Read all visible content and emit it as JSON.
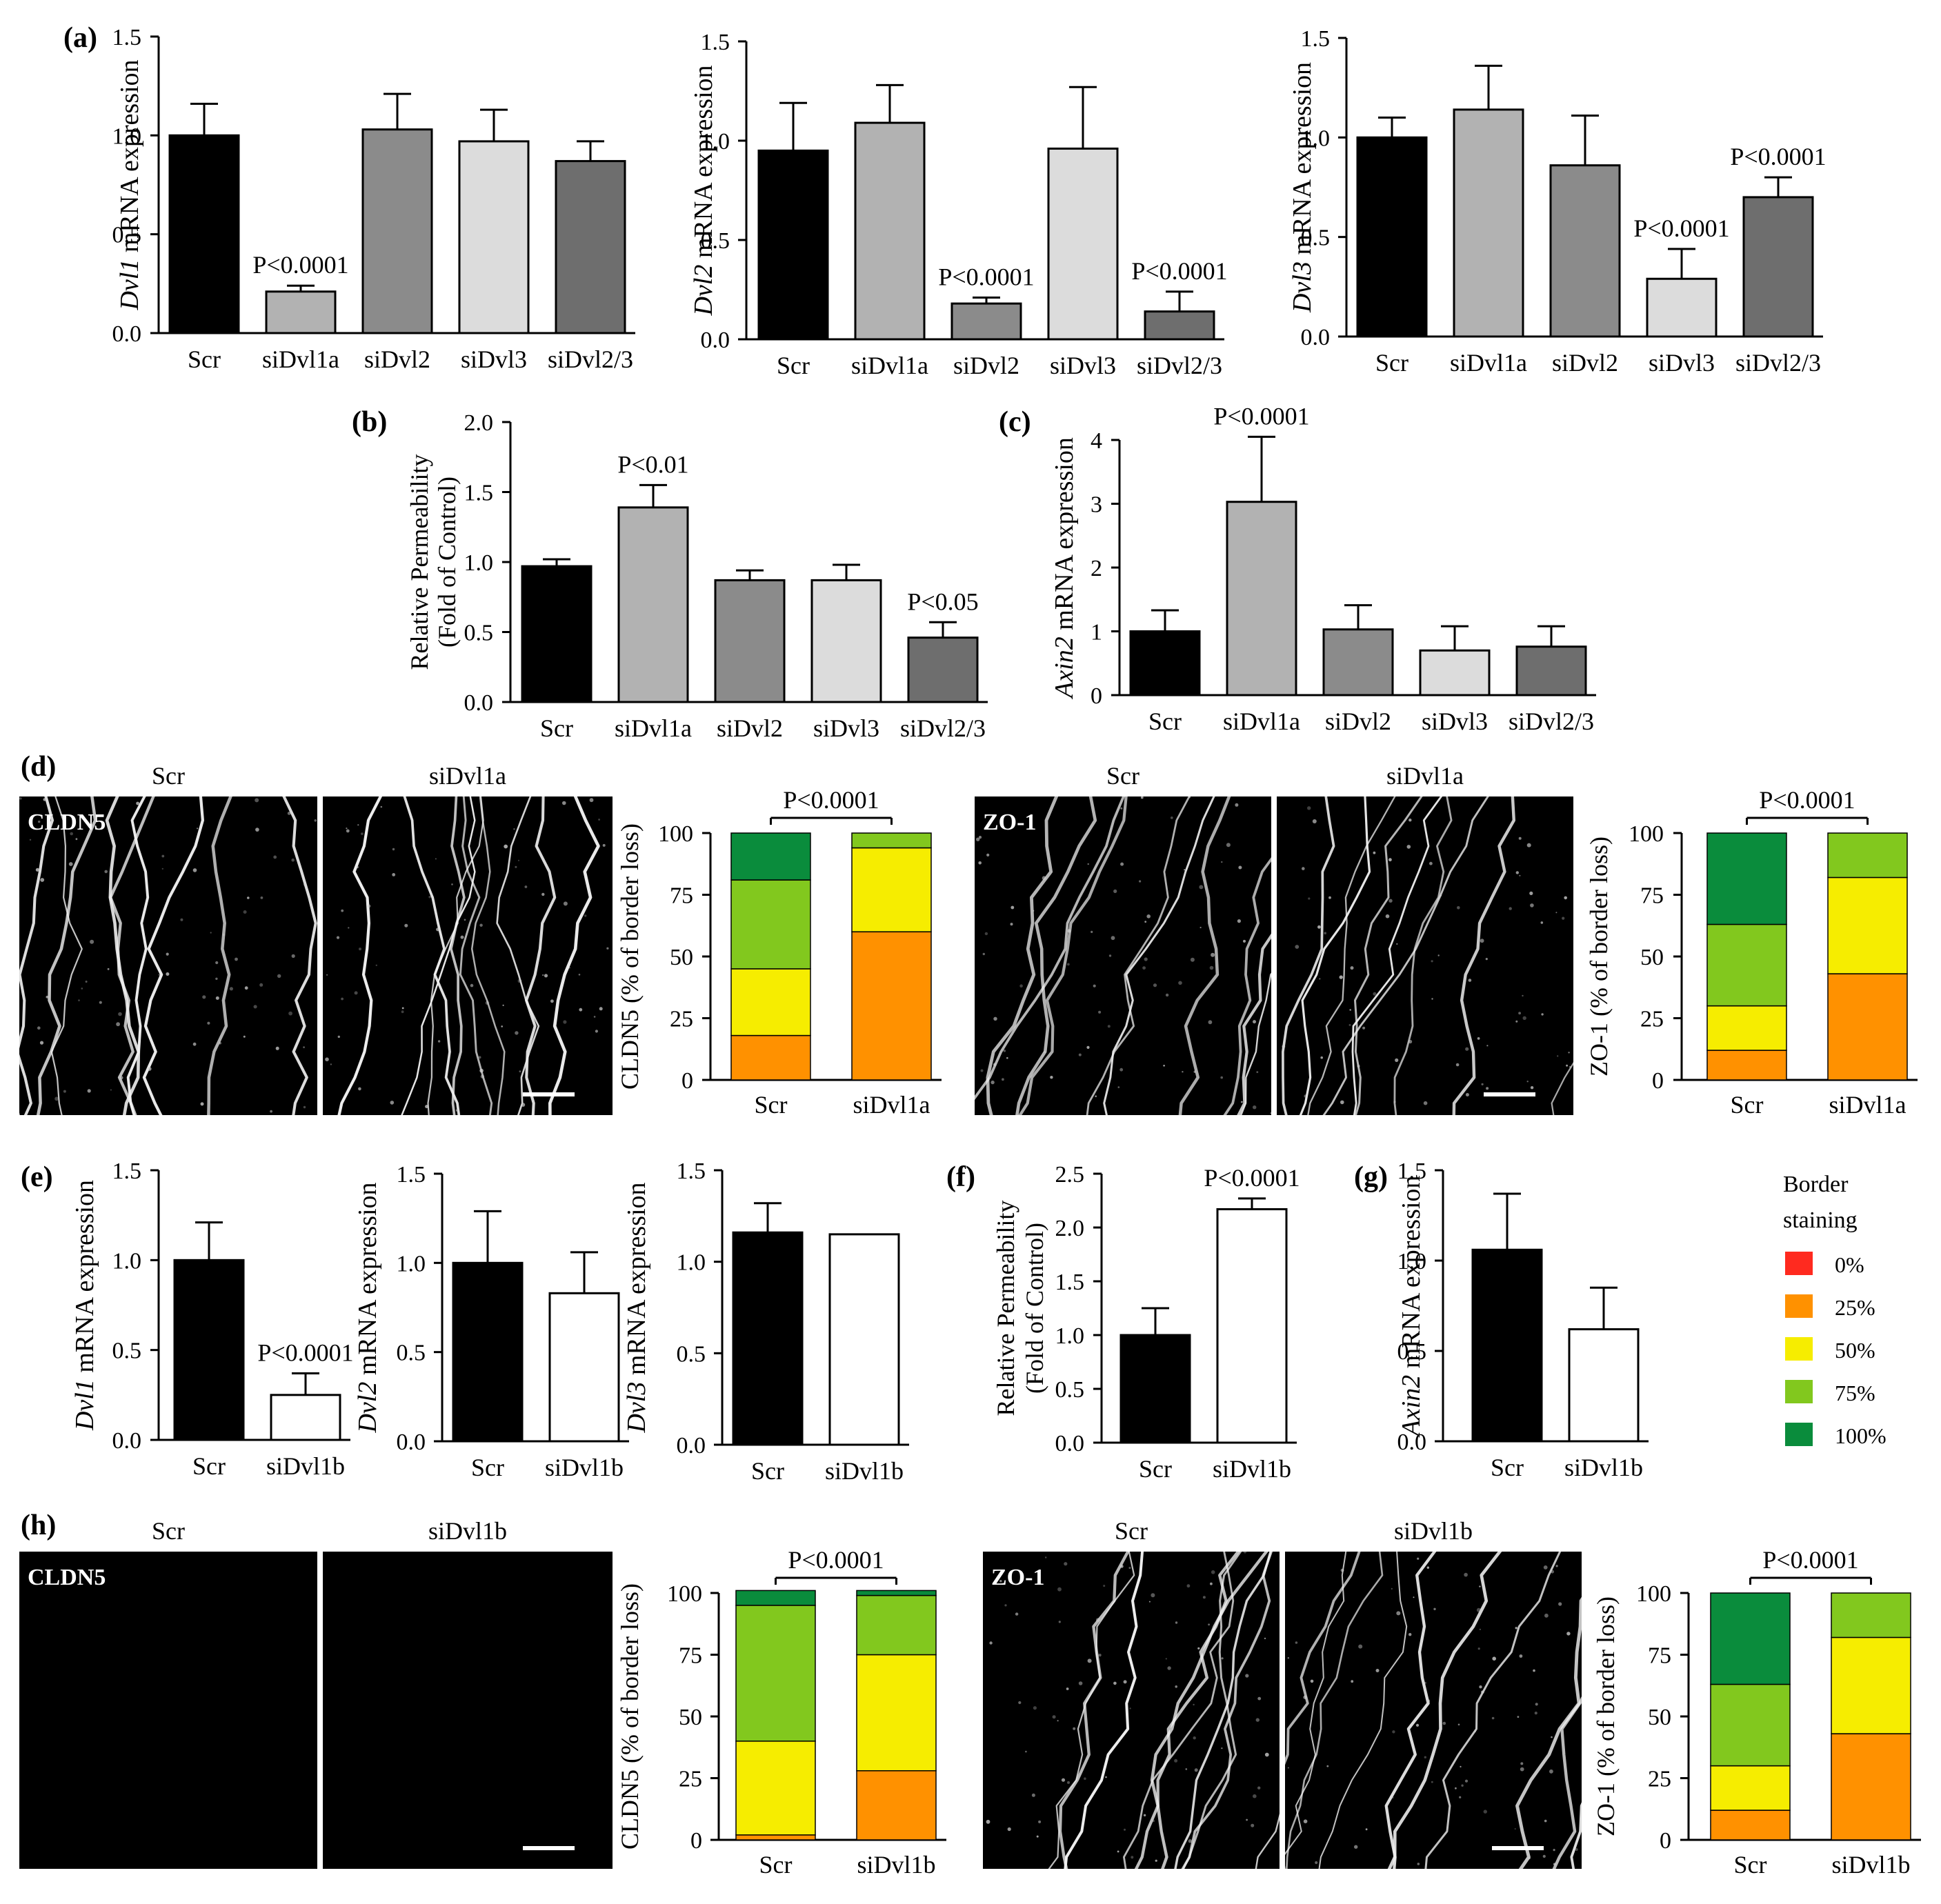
{
  "figure": {
    "panel_letters": {
      "a": "(a)",
      "b": "(b)",
      "c": "(c)",
      "d": "(d)",
      "e": "(e)",
      "f": "(f)",
      "g": "(g)",
      "h": "(h)"
    }
  },
  "legend": {
    "title_line1": "Border",
    "title_line2": "staining",
    "items": [
      {
        "label": "0%",
        "color": "#ff2a1f"
      },
      {
        "label": "25%",
        "color": "#ff9100"
      },
      {
        "label": "50%",
        "color": "#f6ed00"
      },
      {
        "label": "75%",
        "color": "#82c81e"
      },
      {
        "label": "100%",
        "color": "#0a8c3c"
      }
    ]
  },
  "colors": {
    "scr": "#000000",
    "siDvl1a": "#b2b2b2",
    "siDvl2": "#8b8b8b",
    "siDvl3": "#dcdcdc",
    "siDvl2_3": "#6e6e6e",
    "siDvl1b": "#ffffff"
  },
  "micrographs": {
    "d_cldn5": {
      "stain": "CLDN5",
      "left_title": "Scr",
      "right_title": "siDvl1a"
    },
    "d_zo1": {
      "stain": "ZO-1",
      "left_title": "Scr",
      "right_title": "siDvl1a"
    },
    "h_cldn5": {
      "stain": "CLDN5",
      "left_title": "Scr",
      "right_title": "siDvl1b"
    },
    "h_zo1": {
      "stain": "ZO-1",
      "left_title": "Scr",
      "right_title": "siDvl1b"
    }
  },
  "chart_data": [
    {
      "id": "a1",
      "panel": "(a)",
      "type": "bar",
      "ylabel_italic": "Dvl1",
      "ylabel_rest": " mRNA expression",
      "ylim": [
        0,
        1.5
      ],
      "yticks": [
        "0.0",
        "0.5",
        "1.0",
        "1.5"
      ],
      "categories": [
        "Scr",
        "siDvl1a",
        "siDvl2",
        "siDvl3",
        "siDvl2/3"
      ],
      "values": [
        1.0,
        0.21,
        1.03,
        0.97,
        0.87
      ],
      "errors": [
        0.16,
        0.03,
        0.18,
        0.16,
        0.1
      ],
      "annotations": [
        "",
        "P<0.0001",
        "",
        "",
        ""
      ]
    },
    {
      "id": "a2",
      "panel": "",
      "type": "bar",
      "ylabel_italic": "Dvl2",
      "ylabel_rest": " mRNA expression",
      "ylim": [
        0,
        1.5
      ],
      "yticks": [
        "0.0",
        "0.5",
        "1.0",
        "1.5"
      ],
      "categories": [
        "Scr",
        "siDvl1a",
        "siDvl2",
        "siDvl3",
        "siDvl2/3"
      ],
      "values": [
        0.95,
        1.09,
        0.18,
        0.96,
        0.14
      ],
      "errors": [
        0.24,
        0.19,
        0.03,
        0.31,
        0.1
      ],
      "annotations": [
        "",
        "",
        "P<0.0001",
        "",
        "P<0.0001"
      ]
    },
    {
      "id": "a3",
      "panel": "",
      "type": "bar",
      "ylabel_italic": "Dvl3",
      "ylabel_rest": " mRNA expression",
      "ylim": [
        0,
        1.5
      ],
      "yticks": [
        "0.0",
        "0.5",
        "1.0",
        "1.5"
      ],
      "categories": [
        "Scr",
        "siDvl1a",
        "siDvl2",
        "siDvl3",
        "siDvl2/3"
      ],
      "values": [
        1.0,
        1.14,
        0.86,
        0.29,
        0.7
      ],
      "errors": [
        0.1,
        0.22,
        0.25,
        0.15,
        0.1
      ],
      "annotations": [
        "",
        "",
        "",
        "P<0.0001",
        "P<0.0001"
      ]
    },
    {
      "id": "b",
      "panel": "(b)",
      "type": "bar",
      "ylabel_line1": "Relative Permeability",
      "ylabel_line2": "(Fold of Control)",
      "ylim": [
        0,
        2.0
      ],
      "yticks": [
        "0.0",
        "0.5",
        "1.0",
        "1.5",
        "2.0"
      ],
      "categories": [
        "Scr",
        "siDvl1a",
        "siDvl2",
        "siDvl3",
        "siDvl2/3"
      ],
      "values": [
        0.97,
        1.39,
        0.87,
        0.87,
        0.46
      ],
      "errors": [
        0.05,
        0.16,
        0.07,
        0.11,
        0.11
      ],
      "annotations": [
        "",
        "P<0.01",
        "",
        "",
        "P<0.05"
      ]
    },
    {
      "id": "c",
      "panel": "(c)",
      "type": "bar",
      "ylabel_italic": "Axin2",
      "ylabel_rest": " mRNA expression",
      "ylim": [
        0,
        4
      ],
      "yticks": [
        "0",
        "1",
        "2",
        "3",
        "4"
      ],
      "categories": [
        "Scr",
        "siDvl1a",
        "siDvl2",
        "siDvl3",
        "siDvl2/3"
      ],
      "values": [
        1.0,
        3.03,
        1.03,
        0.7,
        0.76
      ],
      "errors": [
        0.33,
        1.02,
        0.38,
        0.38,
        0.32
      ],
      "annotations": [
        "",
        "P<0.0001",
        "",
        "",
        ""
      ]
    },
    {
      "id": "d1",
      "panel": "",
      "type": "stacked-bar",
      "ylabel": "CLDN5 (% of border loss)",
      "ylim": [
        0,
        100
      ],
      "yticks": [
        "0",
        "25",
        "50",
        "75",
        "100"
      ],
      "categories": [
        "Scr",
        "siDvl1a"
      ],
      "series": [
        {
          "name": "25%",
          "values": [
            18,
            60
          ]
        },
        {
          "name": "50%",
          "values": [
            27,
            34
          ]
        },
        {
          "name": "75%",
          "values": [
            36,
            6
          ]
        },
        {
          "name": "100%",
          "values": [
            19,
            0
          ]
        }
      ],
      "significance": "P<0.0001"
    },
    {
      "id": "d2",
      "panel": "",
      "type": "stacked-bar",
      "ylabel": "ZO-1 (% of border loss)",
      "ylim": [
        0,
        100
      ],
      "yticks": [
        "0",
        "25",
        "50",
        "75",
        "100"
      ],
      "categories": [
        "Scr",
        "siDvl1a"
      ],
      "series": [
        {
          "name": "25%",
          "values": [
            12,
            43
          ]
        },
        {
          "name": "50%",
          "values": [
            18,
            39
          ]
        },
        {
          "name": "75%",
          "values": [
            33,
            18
          ]
        },
        {
          "name": "100%",
          "values": [
            37,
            0
          ]
        }
      ],
      "significance": "P<0.0001"
    },
    {
      "id": "e1",
      "panel": "(e)",
      "type": "bar",
      "ylabel_italic": "Dvl1",
      "ylabel_rest": " mRNA expression",
      "ylim": [
        0,
        1.5
      ],
      "yticks": [
        "0.0",
        "0.5",
        "1.0",
        "1.5"
      ],
      "categories": [
        "Scr",
        "siDvl1b"
      ],
      "values": [
        1.0,
        0.25
      ],
      "errors": [
        0.21,
        0.12
      ],
      "annotations": [
        "",
        "P<0.0001"
      ]
    },
    {
      "id": "e2",
      "panel": "",
      "type": "bar",
      "ylabel_italic": "Dvl2",
      "ylabel_rest": " mRNA expression",
      "ylim": [
        0,
        1.5
      ],
      "yticks": [
        "0.0",
        "0.5",
        "1.0",
        "1.5"
      ],
      "categories": [
        "Scr",
        "siDvl1b"
      ],
      "values": [
        1.0,
        0.83
      ],
      "errors": [
        0.29,
        0.23
      ],
      "annotations": [
        "",
        ""
      ]
    },
    {
      "id": "e3",
      "panel": "",
      "type": "bar",
      "ylabel_italic": "Dvl3",
      "ylabel_rest": " mRNA expression",
      "ylim": [
        0,
        1.5
      ],
      "yticks": [
        "0.0",
        "0.5",
        "1.0",
        "1.5"
      ],
      "categories": [
        "Scr",
        "siDvl1b"
      ],
      "values": [
        1.16,
        1.15
      ],
      "errors": [
        0.16,
        0.0
      ],
      "annotations": [
        "",
        ""
      ]
    },
    {
      "id": "f",
      "panel": "(f)",
      "type": "bar",
      "ylabel_line1": "Relative Permeability",
      "ylabel_line2": "(Fold of Control)",
      "ylim": [
        0,
        2.5
      ],
      "yticks": [
        "0.0",
        "0.5",
        "1.0",
        "1.5",
        "2.0",
        "2.5"
      ],
      "categories": [
        "Scr",
        "siDvl1b"
      ],
      "values": [
        1.0,
        2.17
      ],
      "errors": [
        0.25,
        0.1
      ],
      "annotations": [
        "",
        "P<0.0001"
      ]
    },
    {
      "id": "g",
      "panel": "(g)",
      "type": "bar",
      "ylabel_italic": "Axin2",
      "ylabel_rest": " mRNA expression",
      "ylim": [
        0,
        1.5
      ],
      "yticks": [
        "0.0",
        "0.5",
        "1.0",
        "1.5"
      ],
      "categories": [
        "Scr",
        "siDvl1b"
      ],
      "values": [
        1.06,
        0.62
      ],
      "errors": [
        0.31,
        0.23
      ],
      "annotations": [
        "",
        ""
      ]
    },
    {
      "id": "h1",
      "panel": "",
      "type": "stacked-bar",
      "ylabel": "CLDN5 (% of border loss)",
      "ylim": [
        0,
        100
      ],
      "yticks": [
        "0",
        "25",
        "50",
        "75",
        "100"
      ],
      "categories": [
        "Scr",
        "siDvl1b"
      ],
      "series": [
        {
          "name": "25%",
          "values": [
            2,
            28
          ]
        },
        {
          "name": "50%",
          "values": [
            38,
            47
          ]
        },
        {
          "name": "75%",
          "values": [
            55,
            24
          ]
        },
        {
          "name": "100%",
          "values": [
            6,
            2
          ]
        }
      ],
      "significance": "P<0.0001"
    },
    {
      "id": "h2",
      "panel": "",
      "type": "stacked-bar",
      "ylabel": "ZO-1 (% of border loss)",
      "ylim": [
        0,
        100
      ],
      "yticks": [
        "0",
        "25",
        "50",
        "75",
        "100"
      ],
      "categories": [
        "Scr",
        "siDvl1b"
      ],
      "series": [
        {
          "name": "25%",
          "values": [
            12,
            43
          ]
        },
        {
          "name": "50%",
          "values": [
            18,
            39
          ]
        },
        {
          "name": "75%",
          "values": [
            33,
            18
          ]
        },
        {
          "name": "100%",
          "values": [
            37,
            0
          ]
        }
      ],
      "significance": "P<0.0001"
    }
  ]
}
